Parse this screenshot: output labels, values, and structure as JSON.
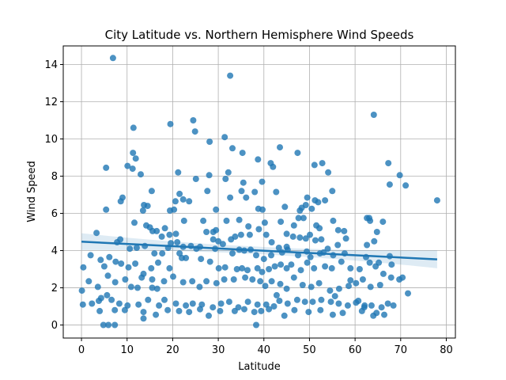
{
  "chart_data": {
    "type": "scatter",
    "title": "City Latitude vs. Northern Hemisphere Wind Speeds",
    "xlabel": "Latitude",
    "ylabel": "Wind Speed",
    "xlim": [
      -4,
      82
    ],
    "ylim": [
      -0.7,
      15
    ],
    "x_ticks": [
      0,
      10,
      20,
      30,
      40,
      50,
      60,
      70,
      80
    ],
    "y_ticks": [
      0,
      2,
      4,
      6,
      8,
      10,
      12,
      14
    ],
    "grid": true,
    "point_color": "#1f77b4",
    "regression": {
      "x_start": 0,
      "y_start": 4.48,
      "x_end": 78,
      "y_end": 3.53,
      "color": "#1f77b4",
      "band_color": "#1f77b4"
    },
    "points": [
      [
        6.9,
        14.35
      ],
      [
        32.6,
        13.4
      ],
      [
        64.1,
        11.3
      ],
      [
        24.5,
        11.0
      ],
      [
        19.5,
        10.8
      ],
      [
        31.4,
        10.1
      ],
      [
        11.4,
        10.6
      ],
      [
        24.9,
        10.4
      ],
      [
        28.1,
        9.85
      ],
      [
        33.1,
        9.5
      ],
      [
        11.3,
        9.25
      ],
      [
        35.3,
        9.25
      ],
      [
        47.4,
        9.25
      ],
      [
        43.5,
        9.55
      ],
      [
        38.7,
        8.9
      ],
      [
        11.9,
        8.95
      ],
      [
        5.4,
        8.45
      ],
      [
        10.1,
        8.55
      ],
      [
        11.2,
        8.4
      ],
      [
        13.0,
        8.1
      ],
      [
        21.2,
        8.2
      ],
      [
        28.0,
        8.05
      ],
      [
        32.2,
        8.2
      ],
      [
        41.5,
        8.7
      ],
      [
        42.0,
        8.5
      ],
      [
        51.1,
        8.6
      ],
      [
        52.8,
        8.7
      ],
      [
        54.1,
        8.2
      ],
      [
        67.3,
        8.7
      ],
      [
        69.8,
        8.05
      ],
      [
        25.1,
        7.85
      ],
      [
        31.6,
        7.85
      ],
      [
        35.5,
        7.65
      ],
      [
        39.6,
        7.7
      ],
      [
        42.7,
        7.15
      ],
      [
        67.6,
        7.55
      ],
      [
        71.1,
        7.5
      ],
      [
        15.4,
        7.2
      ],
      [
        21.5,
        7.05
      ],
      [
        27.6,
        7.2
      ],
      [
        35.1,
        7.2
      ],
      [
        38.0,
        7.15
      ],
      [
        55.0,
        7.2
      ],
      [
        9.0,
        6.85
      ],
      [
        8.6,
        6.65
      ],
      [
        13.7,
        6.45
      ],
      [
        14.5,
        6.4
      ],
      [
        19.4,
        6.15
      ],
      [
        20.6,
        6.65
      ],
      [
        22.3,
        6.75
      ],
      [
        23.6,
        6.65
      ],
      [
        29.5,
        6.2
      ],
      [
        32.6,
        6.85
      ],
      [
        36.1,
        6.85
      ],
      [
        38.8,
        6.25
      ],
      [
        39.7,
        6.2
      ],
      [
        44.6,
        6.35
      ],
      [
        47.9,
        6.15
      ],
      [
        48.3,
        6.3
      ],
      [
        49.5,
        6.85
      ],
      [
        51.2,
        6.7
      ],
      [
        51.9,
        6.6
      ],
      [
        53.4,
        6.7
      ],
      [
        49.2,
        6.45
      ],
      [
        50.5,
        6.25
      ],
      [
        5.4,
        6.2
      ],
      [
        13.5,
        6.15
      ],
      [
        20.3,
        6.2
      ],
      [
        78.0,
        6.7
      ],
      [
        62.6,
        5.75
      ],
      [
        63.3,
        5.6
      ],
      [
        63.1,
        5.75
      ],
      [
        66.1,
        5.55
      ],
      [
        18.3,
        5.2
      ],
      [
        14.2,
        5.35
      ],
      [
        11.6,
        5.5
      ],
      [
        19.3,
        4.85
      ],
      [
        22.5,
        5.6
      ],
      [
        26.7,
        5.6
      ],
      [
        28.9,
        5.0
      ],
      [
        29.5,
        5.1
      ],
      [
        31.8,
        5.6
      ],
      [
        34.6,
        5.65
      ],
      [
        36.6,
        5.3
      ],
      [
        38.9,
        5.15
      ],
      [
        40.2,
        5.5
      ],
      [
        43.7,
        5.55
      ],
      [
        46.6,
        5.35
      ],
      [
        47.6,
        5.75
      ],
      [
        48.7,
        5.75
      ],
      [
        51.5,
        5.35
      ],
      [
        52.2,
        5.2
      ],
      [
        55.2,
        5.6
      ],
      [
        56.3,
        5.1
      ],
      [
        57.6,
        5.05
      ],
      [
        3.3,
        4.95
      ],
      [
        7.8,
        4.45
      ],
      [
        8.5,
        4.6
      ],
      [
        15.0,
        5.25
      ],
      [
        15.6,
        5.05
      ],
      [
        16.5,
        5.05
      ],
      [
        17.6,
        4.75
      ],
      [
        21.0,
        4.45
      ],
      [
        24.0,
        4.25
      ],
      [
        28.9,
        4.6
      ],
      [
        30.0,
        4.5
      ],
      [
        32.8,
        4.6
      ],
      [
        33.7,
        4.75
      ],
      [
        35.0,
        4.85
      ],
      [
        36.9,
        4.85
      ],
      [
        40.5,
        4.85
      ],
      [
        41.7,
        4.45
      ],
      [
        45.0,
        4.9
      ],
      [
        46.4,
        4.75
      ],
      [
        47.9,
        4.7
      ],
      [
        49.2,
        4.65
      ],
      [
        50.1,
        4.85
      ],
      [
        51.3,
        4.55
      ],
      [
        52.6,
        4.6
      ],
      [
        56.2,
        4.3
      ],
      [
        62.6,
        4.3
      ],
      [
        64.8,
        5.0
      ],
      [
        64.2,
        4.5
      ],
      [
        10.6,
        4.1
      ],
      [
        12.1,
        4.15
      ],
      [
        13.9,
        4.25
      ],
      [
        19.0,
        4.15
      ],
      [
        19.6,
        4.4
      ],
      [
        22.3,
        4.2
      ],
      [
        25.2,
        4.1
      ],
      [
        26.0,
        4.2
      ],
      [
        29.3,
        4.1
      ],
      [
        31.0,
        4.35
      ],
      [
        33.1,
        3.85
      ],
      [
        34.6,
        4.05
      ],
      [
        35.7,
        4.0
      ],
      [
        37.1,
        4.05
      ],
      [
        38.3,
        3.75
      ],
      [
        40.0,
        3.55
      ],
      [
        41.6,
        3.75
      ],
      [
        43.3,
        4.15
      ],
      [
        44.0,
        3.9
      ],
      [
        45.2,
        4.05
      ],
      [
        47.5,
        3.75
      ],
      [
        49.4,
        3.95
      ],
      [
        50.2,
        3.65
      ],
      [
        52.3,
        3.85
      ],
      [
        53.1,
        3.9
      ],
      [
        54.0,
        4.1
      ],
      [
        55.2,
        3.75
      ],
      [
        57.7,
        3.85
      ],
      [
        62.4,
        3.65
      ],
      [
        65.2,
        3.35
      ],
      [
        67.6,
        3.7
      ],
      [
        2.0,
        3.75
      ],
      [
        4.2,
        3.5
      ],
      [
        5.0,
        3.15
      ],
      [
        6.1,
        3.65
      ],
      [
        7.5,
        3.4
      ],
      [
        8.7,
        3.3
      ],
      [
        10.3,
        3.1
      ],
      [
        11.8,
        3.3
      ],
      [
        13.6,
        2.75
      ],
      [
        15.3,
        3.05
      ],
      [
        16.8,
        3.35
      ],
      [
        19.3,
        3.05
      ],
      [
        22.0,
        3.6
      ],
      [
        22.9,
        3.6
      ],
      [
        26.2,
        3.55
      ],
      [
        28.2,
        3.4
      ],
      [
        30.1,
        3.05
      ],
      [
        31.5,
        3.1
      ],
      [
        34.1,
        3.0
      ],
      [
        35.2,
        3.05
      ],
      [
        36.4,
        2.95
      ],
      [
        38.6,
        3.05
      ],
      [
        39.6,
        2.85
      ],
      [
        41.1,
        3.0
      ],
      [
        42.4,
        3.15
      ],
      [
        43.7,
        3.25
      ],
      [
        45.0,
        3.05
      ],
      [
        46.0,
        3.25
      ],
      [
        48.1,
        2.95
      ],
      [
        49.5,
        3.35
      ],
      [
        51.0,
        3.05
      ],
      [
        53.4,
        3.15
      ],
      [
        54.9,
        3.05
      ],
      [
        57.0,
        3.4
      ],
      [
        59.0,
        3.05
      ],
      [
        61.0,
        3.0
      ],
      [
        63.2,
        3.35
      ],
      [
        64.5,
        3.15
      ],
      [
        66.2,
        2.75
      ],
      [
        68.0,
        3.25
      ],
      [
        0.4,
        3.1
      ],
      [
        1.6,
        2.35
      ],
      [
        3.6,
        2.05
      ],
      [
        5.8,
        2.65
      ],
      [
        7.4,
        2.3
      ],
      [
        9.6,
        2.45
      ],
      [
        10.9,
        2.05
      ],
      [
        12.3,
        2.0
      ],
      [
        13.2,
        2.55
      ],
      [
        15.5,
        2.45
      ],
      [
        16.6,
        1.95
      ],
      [
        18.1,
        2.35
      ],
      [
        20.1,
        2.6
      ],
      [
        22.3,
        2.3
      ],
      [
        24.3,
        2.35
      ],
      [
        25.9,
        2.05
      ],
      [
        27.4,
        2.35
      ],
      [
        29.6,
        2.25
      ],
      [
        31.3,
        2.45
      ],
      [
        33.4,
        2.45
      ],
      [
        35.9,
        2.55
      ],
      [
        37.5,
        2.45
      ],
      [
        39.2,
        2.35
      ],
      [
        40.3,
        2.1
      ],
      [
        41.7,
        2.35
      ],
      [
        43.6,
        2.2
      ],
      [
        45.0,
        1.95
      ],
      [
        46.6,
        2.55
      ],
      [
        48.5,
        2.15
      ],
      [
        50.4,
        2.05
      ],
      [
        52.1,
        2.25
      ],
      [
        54.5,
        1.85
      ],
      [
        56.5,
        1.95
      ],
      [
        58.6,
        2.1
      ],
      [
        60.2,
        2.25
      ],
      [
        61.7,
        2.45
      ],
      [
        63.4,
        2.05
      ],
      [
        65.5,
        2.15
      ],
      [
        67.9,
        2.55
      ],
      [
        69.7,
        2.45
      ],
      [
        70.4,
        2.55
      ],
      [
        0.1,
        1.85
      ],
      [
        2.3,
        1.15
      ],
      [
        3.8,
        1.3
      ],
      [
        4.3,
        1.45
      ],
      [
        5.6,
        1.6
      ],
      [
        6.6,
        1.35
      ],
      [
        8.3,
        1.15
      ],
      [
        10.1,
        1.05
      ],
      [
        12.5,
        1.1
      ],
      [
        14.6,
        1.35
      ],
      [
        17.0,
        1.05
      ],
      [
        18.2,
        1.35
      ],
      [
        20.7,
        1.15
      ],
      [
        22.9,
        1.05
      ],
      [
        24.4,
        1.15
      ],
      [
        26.4,
        1.1
      ],
      [
        28.8,
        0.95
      ],
      [
        30.6,
        1.15
      ],
      [
        32.4,
        1.25
      ],
      [
        34.4,
        0.95
      ],
      [
        36.5,
        1.25
      ],
      [
        38.6,
        1.1
      ],
      [
        40.5,
        1.1
      ],
      [
        42.2,
        1.0
      ],
      [
        43.4,
        1.3
      ],
      [
        45.2,
        1.15
      ],
      [
        47.3,
        1.35
      ],
      [
        49.0,
        1.25
      ],
      [
        50.7,
        1.25
      ],
      [
        52.6,
        1.35
      ],
      [
        54.7,
        1.25
      ],
      [
        56.4,
        1.15
      ],
      [
        58.4,
        1.05
      ],
      [
        60.2,
        1.2
      ],
      [
        62.1,
        1.05
      ],
      [
        63.6,
        1.05
      ],
      [
        65.8,
        0.95
      ],
      [
        67.2,
        1.15
      ],
      [
        68.4,
        1.05
      ],
      [
        0.3,
        1.1
      ],
      [
        4.0,
        0.75
      ],
      [
        7.3,
        0.8
      ],
      [
        9.5,
        0.8
      ],
      [
        13.6,
        0.7
      ],
      [
        16.3,
        0.55
      ],
      [
        18.9,
        0.8
      ],
      [
        21.4,
        0.75
      ],
      [
        23.6,
        0.7
      ],
      [
        26.0,
        0.85
      ],
      [
        27.9,
        0.5
      ],
      [
        30.4,
        0.75
      ],
      [
        33.6,
        0.75
      ],
      [
        35.7,
        0.85
      ],
      [
        37.9,
        0.7
      ],
      [
        39.4,
        0.75
      ],
      [
        41.1,
        0.85
      ],
      [
        44.5,
        0.5
      ],
      [
        46.7,
        0.8
      ],
      [
        49.8,
        0.7
      ],
      [
        52.4,
        0.8
      ],
      [
        55.1,
        0.55
      ],
      [
        57.3,
        0.65
      ],
      [
        61.5,
        0.75
      ],
      [
        64.0,
        0.5
      ],
      [
        66.4,
        0.55
      ],
      [
        4.8,
        0.0
      ],
      [
        5.9,
        0.0
      ],
      [
        7.3,
        0.0
      ],
      [
        13.6,
        0.35
      ],
      [
        38.3,
        0.0
      ],
      [
        15.5,
        2.0
      ],
      [
        42.8,
        1.6
      ],
      [
        55.6,
        1.55
      ],
      [
        58.0,
        4.65
      ],
      [
        59.0,
        2.4
      ],
      [
        60.7,
        1.3
      ],
      [
        62.0,
        0.95
      ],
      [
        64.7,
        0.65
      ],
      [
        71.6,
        1.7
      ],
      [
        45.0,
        4.2
      ],
      [
        27.4,
        5.0
      ],
      [
        20.7,
        4.9
      ],
      [
        17.7,
        3.85
      ],
      [
        21.5,
        3.85
      ],
      [
        16.0,
        3.85
      ]
    ]
  }
}
